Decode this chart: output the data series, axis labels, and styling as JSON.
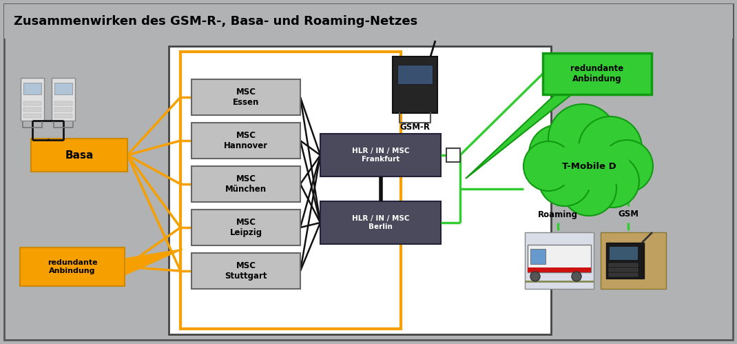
{
  "title": "Zusammenwirken des GSM-R-, Basa- und Roaming-Netzes",
  "bg_color": "#b0b2b4",
  "white": "#ffffff",
  "black": "#111111",
  "orange": "#f5a000",
  "orange_dark": "#cc8800",
  "green": "#33cc33",
  "dark_green": "#119911",
  "msc_fill": "#c0c0c0",
  "msc_edge": "#666666",
  "hlr_fill": "#4a4a5c",
  "hlr_edge": "#22223a",
  "title_bg": "#c8c8c8",
  "msc_labels": [
    "MSC\nEssen",
    "MSC\nHannover",
    "MSC\nMünchen",
    "MSC\nLeipzig",
    "MSC\nStuttgart"
  ],
  "hlr_labels": [
    "HLR / IN / MSC\nFrankfurt",
    "HLR / IN / MSC\nBerlin"
  ],
  "fig_w": 10.7,
  "fig_h": 4.99
}
